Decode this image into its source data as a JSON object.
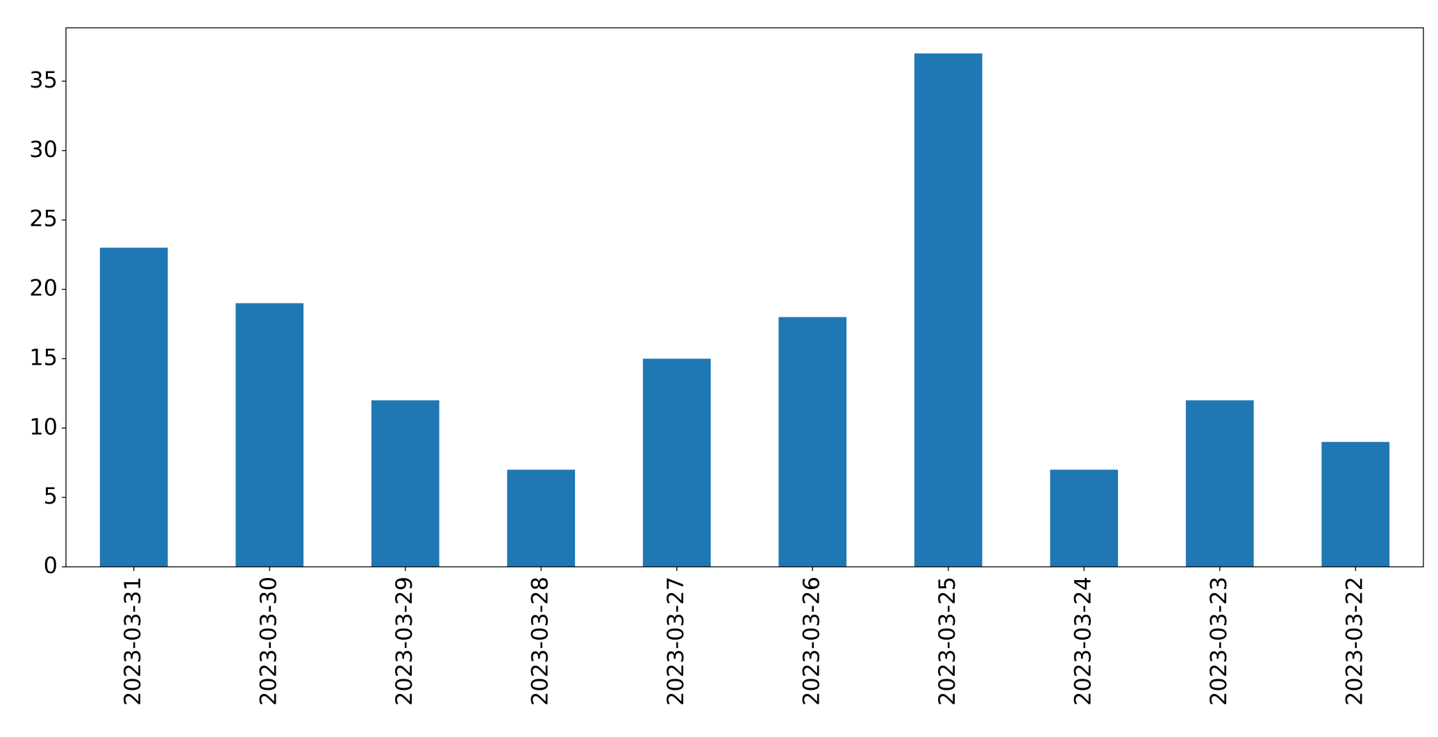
{
  "chart_data": {
    "type": "bar",
    "categories": [
      "2023-03-31",
      "2023-03-30",
      "2023-03-29",
      "2023-03-28",
      "2023-03-27",
      "2023-03-26",
      "2023-03-25",
      "2023-03-24",
      "2023-03-23",
      "2023-03-22"
    ],
    "values": [
      23,
      19,
      12,
      7,
      15,
      18,
      37,
      7,
      12,
      9
    ],
    "color": "#1f77b4",
    "ylim": [
      0,
      38.85
    ],
    "yticks": [
      0,
      5,
      10,
      15,
      20,
      25,
      30,
      35
    ],
    "grid": false
  }
}
